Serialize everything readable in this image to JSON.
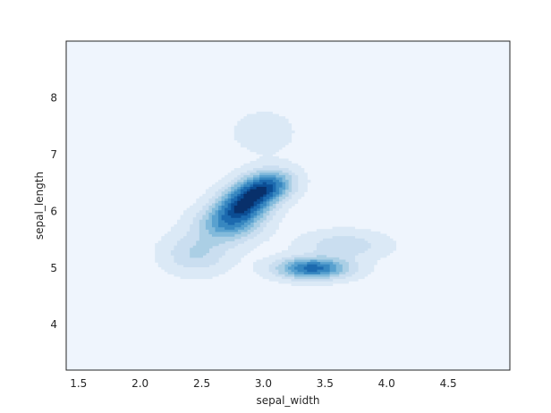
{
  "chart_data": {
    "type": "kde-contour",
    "title": "",
    "xlabel": "sepal_width",
    "ylabel": "sepal_length",
    "xlim": [
      1.4,
      5.0
    ],
    "ylim": [
      3.2,
      9.0
    ],
    "xticks": [
      1.5,
      2.0,
      2.5,
      3.0,
      3.5,
      4.0,
      4.5
    ],
    "xtick_labels": [
      "1.5",
      "2.0",
      "2.5",
      "3.0",
      "3.5",
      "4.0",
      "4.5"
    ],
    "yticks": [
      4,
      5,
      6,
      7,
      8
    ],
    "ytick_labels": [
      "4",
      "5",
      "6",
      "7",
      "8"
    ],
    "grid": false,
    "background_color": "#eff5fd",
    "colormap": "Blues",
    "filled": true,
    "density_peaks": [
      {
        "x": 2.85,
        "y": 6.15,
        "sx": 0.16,
        "sy": 0.28,
        "rho": 0.45,
        "weight": 1.0
      },
      {
        "x": 3.05,
        "y": 6.45,
        "sx": 0.13,
        "sy": 0.17,
        "rho": 0.2,
        "weight": 0.55
      },
      {
        "x": 2.7,
        "y": 5.75,
        "sx": 0.18,
        "sy": 0.22,
        "rho": 0.1,
        "weight": 0.35
      },
      {
        "x": 3.4,
        "y": 5.0,
        "sx": 0.19,
        "sy": 0.12,
        "rho": 0.0,
        "weight": 0.82
      },
      {
        "x": 3.65,
        "y": 5.4,
        "sx": 0.22,
        "sy": 0.16,
        "rho": 0.0,
        "weight": 0.22
      },
      {
        "x": 2.45,
        "y": 5.25,
        "sx": 0.17,
        "sy": 0.22,
        "rho": 0.0,
        "weight": 0.25
      },
      {
        "x": 3.0,
        "y": 7.4,
        "sx": 0.15,
        "sy": 0.22,
        "rho": 0.0,
        "weight": 0.12
      }
    ]
  }
}
